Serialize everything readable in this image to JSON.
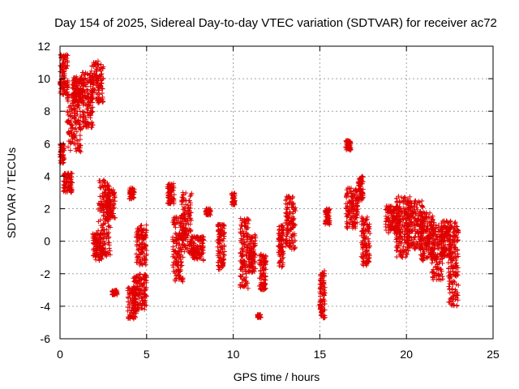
{
  "chart_data": {
    "type": "scatter",
    "title": "Day 154 of 2025, Sidereal Day-to-day VTEC variation (SDTVAR) for receiver ac72",
    "xlabel": "GPS time / hours",
    "ylabel": "SDTVAR / TECUs",
    "xlim": [
      0,
      25
    ],
    "ylim": [
      -6,
      12
    ],
    "x_ticks": [
      0,
      5,
      10,
      15,
      20,
      25
    ],
    "y_ticks": [
      -6,
      -4,
      -2,
      0,
      2,
      4,
      6,
      8,
      10,
      12
    ],
    "grid": true,
    "marker": "+",
    "series": [
      {
        "name": "SDTVAR",
        "color": "#e00000",
        "clusters": [
          {
            "x": [
              0.0,
              0.45
            ],
            "y": [
              9.0,
              11.5
            ]
          },
          {
            "x": [
              0.0,
              0.25
            ],
            "y": [
              4.8,
              6.0
            ]
          },
          {
            "x": [
              0.2,
              0.7
            ],
            "y": [
              3.0,
              4.2
            ]
          },
          {
            "x": [
              0.4,
              1.2
            ],
            "y": [
              5.5,
              9.2
            ]
          },
          {
            "x": [
              0.7,
              1.3
            ],
            "y": [
              8.5,
              10.2
            ]
          },
          {
            "x": [
              1.3,
              1.9
            ],
            "y": [
              7.0,
              10.4
            ]
          },
          {
            "x": [
              1.8,
              2.5
            ],
            "y": [
              8.5,
              11.1
            ]
          },
          {
            "x": [
              1.9,
              2.4
            ],
            "y": [
              -1.2,
              0.5
            ]
          },
          {
            "x": [
              2.2,
              2.9
            ],
            "y": [
              -1.0,
              3.8
            ]
          },
          {
            "x": [
              2.7,
              3.2
            ],
            "y": [
              1.4,
              3.2
            ]
          },
          {
            "x": [
              3.0,
              3.3
            ],
            "y": [
              -3.3,
              -3.0
            ]
          },
          {
            "x": [
              3.9,
              4.4
            ],
            "y": [
              -4.8,
              -2.8
            ]
          },
          {
            "x": [
              4.2,
              5.0
            ],
            "y": [
              -4.3,
              -2.0
            ]
          },
          {
            "x": [
              4.4,
              5.0
            ],
            "y": [
              -1.5,
              1.0
            ]
          },
          {
            "x": [
              4.0,
              4.3
            ],
            "y": [
              2.6,
              3.3
            ]
          },
          {
            "x": [
              6.2,
              6.6
            ],
            "y": [
              2.3,
              3.6
            ]
          },
          {
            "x": [
              6.5,
              7.1
            ],
            "y": [
              -2.5,
              1.5
            ]
          },
          {
            "x": [
              7.0,
              7.6
            ],
            "y": [
              -0.8,
              3.0
            ]
          },
          {
            "x": [
              7.6,
              8.3
            ],
            "y": [
              -1.2,
              0.3
            ]
          },
          {
            "x": [
              8.4,
              8.7
            ],
            "y": [
              1.6,
              2.0
            ]
          },
          {
            "x": [
              9.1,
              9.5
            ],
            "y": [
              -1.8,
              1.2
            ]
          },
          {
            "x": [
              9.9,
              10.1
            ],
            "y": [
              2.2,
              3.0
            ]
          },
          {
            "x": [
              10.4,
              10.9
            ],
            "y": [
              -2.9,
              1.4
            ]
          },
          {
            "x": [
              10.9,
              11.3
            ],
            "y": [
              -2.0,
              0.5
            ]
          },
          {
            "x": [
              11.5,
              11.9
            ],
            "y": [
              -3.0,
              -0.8
            ]
          },
          {
            "x": [
              11.4,
              11.6
            ],
            "y": [
              -4.7,
              -4.5
            ]
          },
          {
            "x": [
              12.6,
              12.9
            ],
            "y": [
              -1.6,
              1.0
            ]
          },
          {
            "x": [
              13.0,
              13.6
            ],
            "y": [
              -0.5,
              2.8
            ]
          },
          {
            "x": [
              15.0,
              15.3
            ],
            "y": [
              -4.8,
              -1.8
            ]
          },
          {
            "x": [
              15.3,
              15.6
            ],
            "y": [
              1.0,
              2.0
            ]
          },
          {
            "x": [
              16.5,
              16.8
            ],
            "y": [
              5.6,
              6.2
            ]
          },
          {
            "x": [
              16.5,
              17.2
            ],
            "y": [
              0.8,
              3.3
            ]
          },
          {
            "x": [
              17.2,
              17.5
            ],
            "y": [
              2.5,
              4.0
            ]
          },
          {
            "x": [
              17.4,
              17.9
            ],
            "y": [
              -1.5,
              1.5
            ]
          },
          {
            "x": [
              18.8,
              19.6
            ],
            "y": [
              0.5,
              2.2
            ]
          },
          {
            "x": [
              19.4,
              20.2
            ],
            "y": [
              -1.0,
              2.8
            ]
          },
          {
            "x": [
              20.0,
              21.0
            ],
            "y": [
              -0.5,
              2.6
            ]
          },
          {
            "x": [
              20.8,
              21.6
            ],
            "y": [
              -1.2,
              1.8
            ]
          },
          {
            "x": [
              21.4,
              22.1
            ],
            "y": [
              -2.4,
              1.0
            ]
          },
          {
            "x": [
              22.0,
              22.6
            ],
            "y": [
              -1.0,
              1.3
            ]
          },
          {
            "x": [
              22.4,
              23.0
            ],
            "y": [
              -4.0,
              1.2
            ]
          }
        ]
      }
    ]
  }
}
